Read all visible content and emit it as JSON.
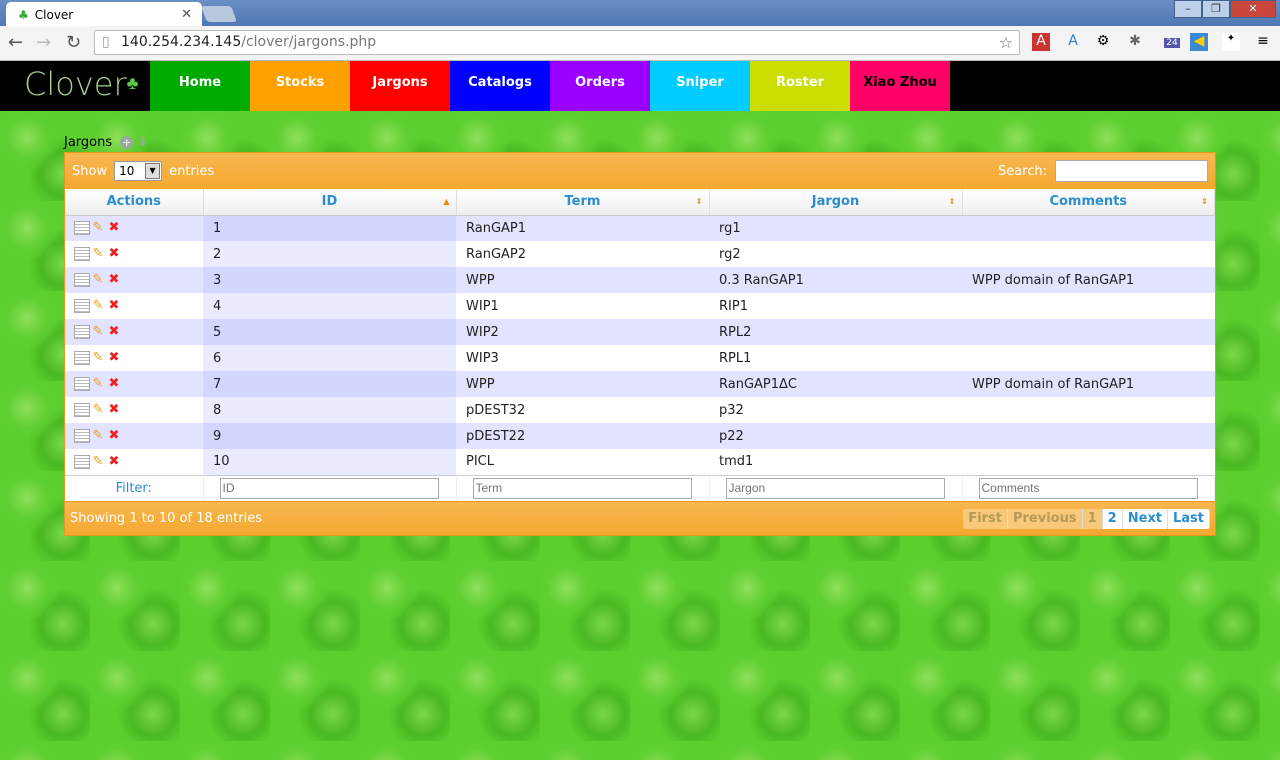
{
  "browser": {
    "tab_title": "Clover",
    "url_host": "140.254.234.145",
    "url_path": "/clover/jargons.php",
    "badge": "24"
  },
  "nav": {
    "logo": "Clover",
    "items": [
      {
        "label": "Home",
        "color": "#00aa00",
        "text": "#ffffff"
      },
      {
        "label": "Stocks",
        "color": "#ffa000",
        "text": "#ffffff"
      },
      {
        "label": "Jargons",
        "color": "#ff0000",
        "text": "#ffffff"
      },
      {
        "label": "Catalogs",
        "color": "#0000ff",
        "text": "#ffffff"
      },
      {
        "label": "Orders",
        "color": "#9900ff",
        "text": "#ffffff"
      },
      {
        "label": "Sniper",
        "color": "#00ccff",
        "text": "#ffffff"
      },
      {
        "label": "Roster",
        "color": "#ccdd00",
        "text": "#ffffff"
      },
      {
        "label": "Xiao Zhou",
        "color": "#ff0066",
        "text": "#000000"
      }
    ]
  },
  "page": {
    "breadcrumb": "Jargons"
  },
  "table": {
    "show_label": "Show",
    "entries_label": "entries",
    "page_size": "10",
    "search_label": "Search:",
    "columns": [
      "Actions",
      "ID",
      "Term",
      "Jargon",
      "Comments"
    ],
    "rows": [
      {
        "id": "1",
        "term": "RanGAP1",
        "jargon": "rg1",
        "comments": ""
      },
      {
        "id": "2",
        "term": "RanGAP2",
        "jargon": "rg2",
        "comments": ""
      },
      {
        "id": "3",
        "term": "WPP",
        "jargon": "0.3 RanGAP1",
        "comments": "WPP domain of RanGAP1"
      },
      {
        "id": "4",
        "term": "WIP1",
        "jargon": "RIP1",
        "comments": ""
      },
      {
        "id": "5",
        "term": "WIP2",
        "jargon": "RPL2",
        "comments": ""
      },
      {
        "id": "6",
        "term": "WIP3",
        "jargon": "RPL1",
        "comments": ""
      },
      {
        "id": "7",
        "term": "WPP",
        "jargon": "RanGAP1ΔC",
        "comments": "WPP domain of RanGAP1"
      },
      {
        "id": "8",
        "term": "pDEST32",
        "jargon": "p32",
        "comments": ""
      },
      {
        "id": "9",
        "term": "pDEST22",
        "jargon": "p22",
        "comments": ""
      },
      {
        "id": "10",
        "term": "PICL",
        "jargon": "tmd1",
        "comments": ""
      }
    ],
    "filter_label": "Filter:",
    "filter_placeholders": [
      "ID",
      "Term",
      "Jargon",
      "Comments"
    ],
    "info": "Showing 1 to 10 of 18 entries",
    "pager": {
      "first": "First",
      "previous": "Previous",
      "pages": [
        "1",
        "2"
      ],
      "next": "Next",
      "last": "Last"
    }
  }
}
